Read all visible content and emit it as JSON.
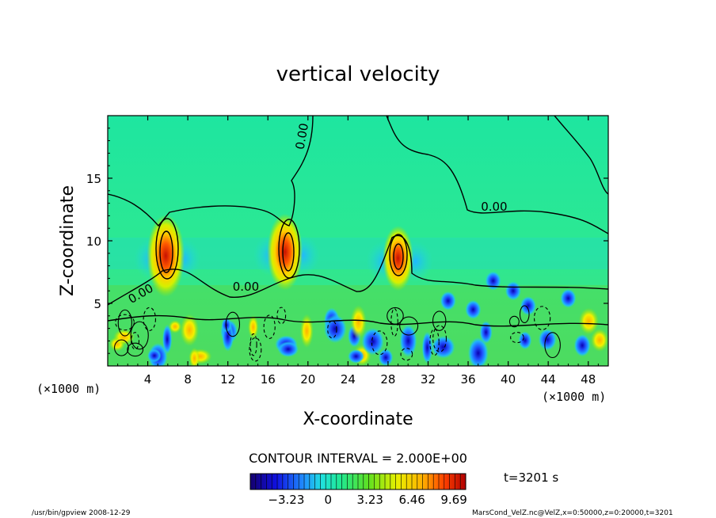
{
  "chart_data": {
    "type": "heatmap",
    "title": "vertical velocity",
    "xlabel": "X-coordinate",
    "ylabel": "Z-coordinate",
    "x_unit": "(×1000 m)",
    "y_unit": "(×1000 m)",
    "xlim": [
      0,
      50
    ],
    "ylim": [
      0,
      20
    ],
    "x_ticks": [
      4,
      8,
      12,
      16,
      20,
      24,
      28,
      32,
      36,
      40,
      44,
      48
    ],
    "y_ticks": [
      5,
      10,
      15
    ],
    "contour_interval_text": "CONTOUR INTERVAL = 2.000E+00",
    "contour_labels": [
      {
        "text": "0.00",
        "x": 19.8,
        "y": 18.3
      },
      {
        "text": "0.00",
        "x": 38.6,
        "y": 12.4
      },
      {
        "text": "0.00",
        "x": 13.8,
        "y": 6.0
      },
      {
        "text": "0.00",
        "x": 3.5,
        "y": 5.5
      }
    ],
    "updrafts": [
      {
        "x": 5.8,
        "z": 8.8,
        "peak": 9.69
      },
      {
        "x": 17.7,
        "z": 9.1,
        "peak": 9.0
      },
      {
        "x": 29.0,
        "z": 8.6,
        "peak": 7.5
      }
    ],
    "colorbar": {
      "ticks": [
        "−3.23",
        "0",
        "3.23",
        "6.46",
        "9.69"
      ],
      "tick_values": [
        -3.23,
        0,
        3.23,
        6.46,
        9.69
      ],
      "range": [
        -6.0,
        10.6
      ]
    },
    "time_label": "t=3201 s",
    "footer_left": "/usr/bin/gpview   2008-12-29",
    "footer_right": "MarsCond_VelZ.nc@VelZ,x=0:50000,z=0:20000,t=3201"
  }
}
